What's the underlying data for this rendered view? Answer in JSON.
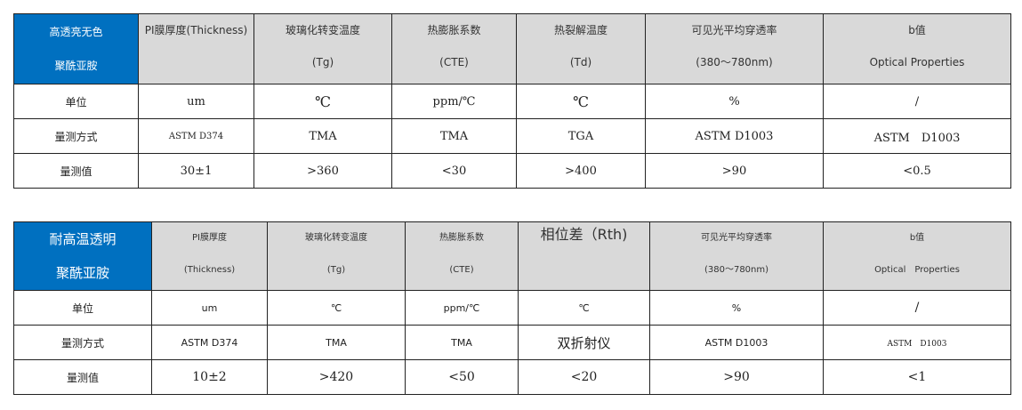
{
  "table1": {
    "corner": [
      "高透亮无色",
      "聚酰亚胺"
    ],
    "headers": [
      [
        "PI膜厚度(Thickness)",
        ""
      ],
      [
        "玻璃化转变温度",
        "(Tg)"
      ],
      [
        "热膨胀系数",
        "(CTE)"
      ],
      [
        "热裂解温度",
        "(Td)"
      ],
      [
        "可见光平均穿透率",
        "(380～780nm)"
      ],
      [
        "b值",
        "Optical Properties"
      ]
    ],
    "rows": [
      {
        "label": "单位",
        "values": [
          "um",
          "℃",
          "ppm/℃",
          "℃",
          "%",
          "/"
        ]
      },
      {
        "label": "量测方式",
        "values": [
          "ASTM D374",
          "TMA",
          "TMA",
          "TGA",
          "ASTM D1003",
          "ASTM　D1003"
        ]
      },
      {
        "label": "量测值",
        "values": [
          "30±1",
          ">360",
          "<30",
          ">400",
          ">90",
          "<0.5"
        ]
      }
    ]
  },
  "table2": {
    "corner": [
      "耐高温透明",
      "聚酰亚胺"
    ],
    "headers": [
      [
        "PI膜厚度",
        "(Thickness)"
      ],
      [
        "玻璃化转变温度",
        "(Tg)"
      ],
      [
        "热膨胀系数",
        "(CTE)"
      ],
      [
        "相位差（Rth)",
        ""
      ],
      [
        "可见光平均穿透率",
        "(380～780nm)"
      ],
      [
        "b值",
        "Optical　Properties"
      ]
    ],
    "rows": [
      {
        "label": "单位",
        "values": [
          "um",
          "℃",
          "ppm/℃",
          "℃",
          "%",
          "/"
        ]
      },
      {
        "label": "量测方式",
        "values": [
          "ASTM D374",
          "TMA",
          "TMA",
          "双折射仪",
          "ASTM D1003",
          "ASTM　D1003"
        ]
      },
      {
        "label": "量测值",
        "values": [
          "10±2",
          ">420",
          "<50",
          "<20",
          ">90",
          "<1"
        ]
      }
    ]
  },
  "colors": {
    "corner": "#0070c0",
    "header": "#d9d9d9"
  }
}
